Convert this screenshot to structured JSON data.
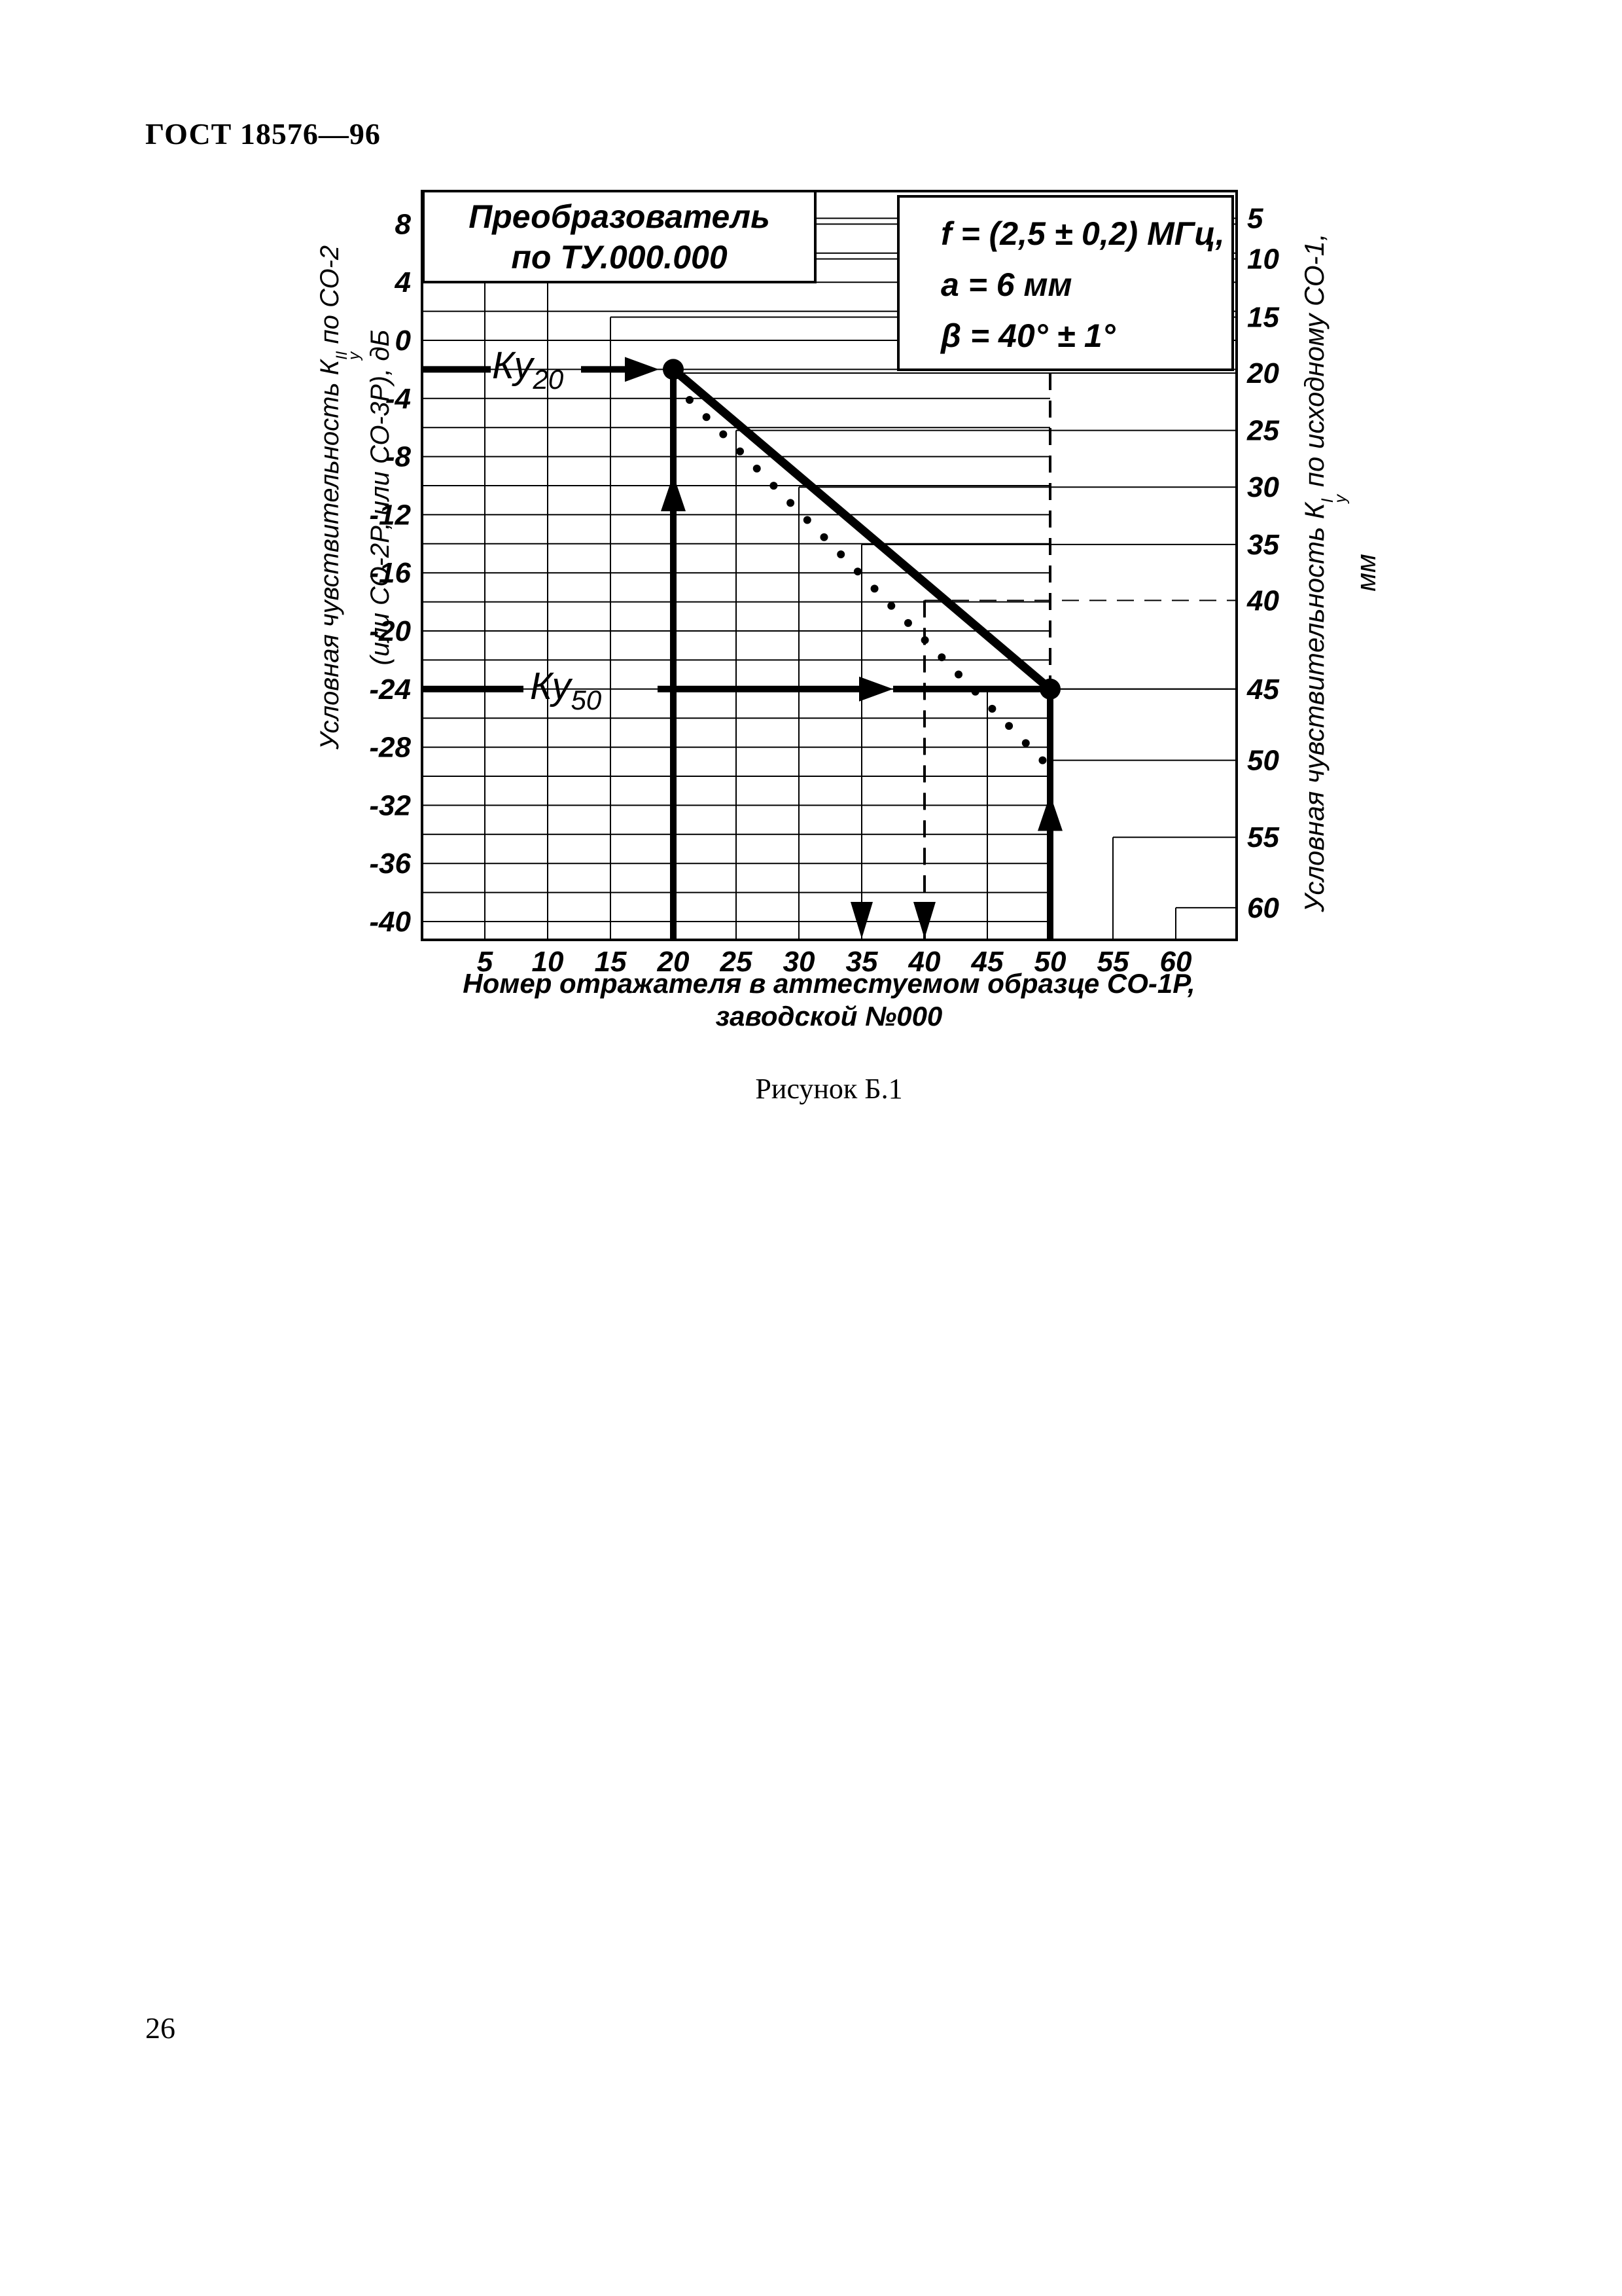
{
  "page": {
    "header": "ГОСТ 18576—96",
    "page_number": "26",
    "caption": "Рисунок Б.1"
  },
  "chart_data": {
    "type": "line",
    "title_box": {
      "line1": "Преобразователь",
      "line2": "по ТУ.000.000"
    },
    "info_box": {
      "line1": "f = (2,5 ± 0,2) МГц,",
      "line2": "a = 6 мм",
      "line3": "β = 40° ± 1°"
    },
    "x_axis": {
      "title_line1": "Номер отражателя в аттестуемом образце СО-1Р,",
      "title_line2": "заводской №000",
      "ticks": [
        5,
        10,
        15,
        20,
        25,
        30,
        35,
        40,
        45,
        50,
        55,
        60
      ],
      "xlim": [
        0,
        64.8
      ]
    },
    "left_axis": {
      "title_pre": "Условная чувствительность К",
      "symbol_sup": "II",
      "symbol_sub": "у",
      "title_post": " по СО-2",
      "title_line2": "(или СО-2Р, или СО-3Р), дБ",
      "units": "дБ",
      "ticks": [
        8,
        4,
        0,
        -4,
        -8,
        -12,
        -16,
        -20,
        -24,
        -28,
        -32,
        -36,
        -40
      ],
      "grid_step_db": 2,
      "ylim": [
        -41,
        10
      ]
    },
    "right_axis": {
      "title_pre": "Условная чувствительность К",
      "symbol_sup": "I",
      "symbol_sub": "у",
      "title_post": " по исходному СО-1, мм",
      "units": "мм",
      "ticks": [
        {
          "mm": 5,
          "db": 8.4
        },
        {
          "mm": 10,
          "db": 5.6
        },
        {
          "mm": 15,
          "db": 1.6
        },
        {
          "mm": 20,
          "db": -2.25
        },
        {
          "mm": 25,
          "db": -6.2
        },
        {
          "mm": 30,
          "db": -10.1
        },
        {
          "mm": 35,
          "db": -14.05
        },
        {
          "mm": 40,
          "db": -17.9
        },
        {
          "mm": 45,
          "db": -24.0
        },
        {
          "mm": 50,
          "db": -28.9
        },
        {
          "mm": 55,
          "db": -34.2
        },
        {
          "mm": 60,
          "db": -39.05
        }
      ]
    },
    "series": [
      {
        "name": "main-line-solid",
        "points": [
          [
            20,
            -2
          ],
          [
            50,
            -24
          ]
        ]
      },
      {
        "name": "tolerance-dotted",
        "points": [
          [
            21.3,
            -4.1
          ],
          [
            49.4,
            -28.9
          ]
        ],
        "dots": 22
      }
    ],
    "annotations": {
      "ky20": {
        "label": "Ку",
        "sub": "20",
        "db": -2,
        "x": 20,
        "arrow_x": 17.5,
        "vert_arrow_db": -10.5
      },
      "ky50": {
        "label": "Ку",
        "sub": "50",
        "db": -24,
        "x": 50,
        "arrow_x": 37.5,
        "vert_arrow_db": -32.5
      },
      "dashed_guides": {
        "vertical_x": [
          35,
          40
        ],
        "horizontal_mm": 40,
        "vertical_mm_x": 50
      }
    }
  }
}
